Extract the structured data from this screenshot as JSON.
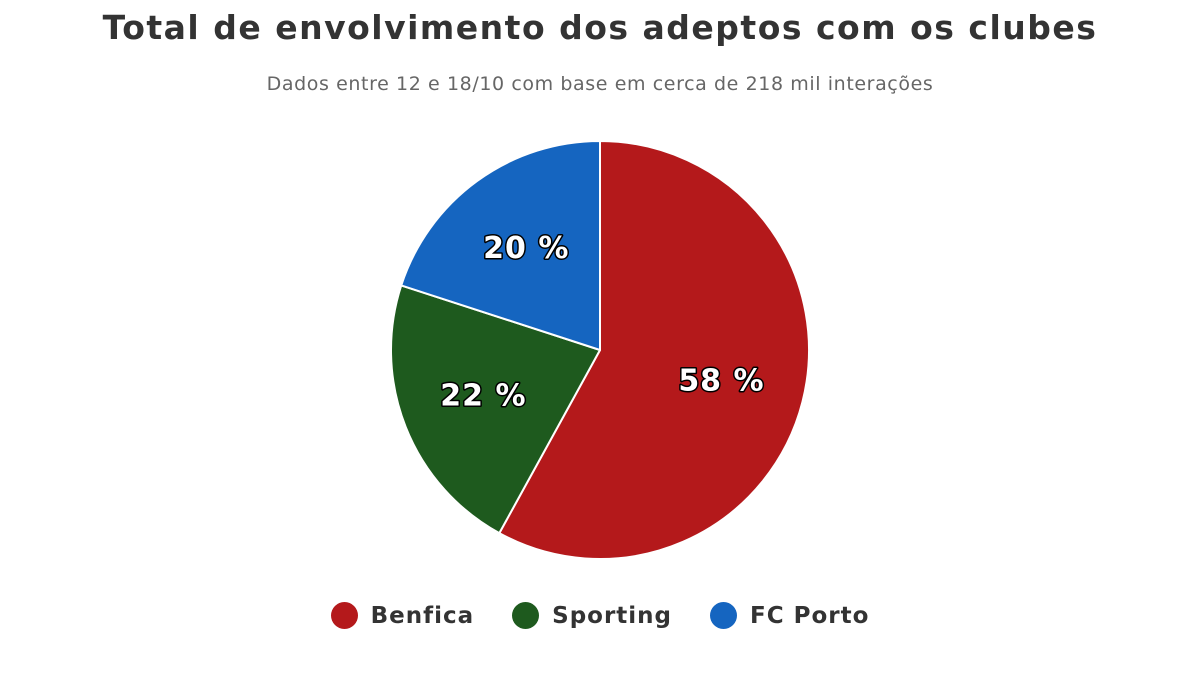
{
  "chart_data": {
    "type": "pie",
    "title": "Total de envolvimento dos adeptos com os clubes",
    "subtitle": "Dados entre 12 e 18/10 com base em cerca de 218 mil interações",
    "slices": [
      {
        "name": "Benfica",
        "value": 58,
        "label": "58 %",
        "color": "#b4191b"
      },
      {
        "name": "Sporting",
        "value": 22,
        "label": "22 %",
        "color": "#1e5a1e"
      },
      {
        "name": "FC Porto",
        "value": 20,
        "label": "20 %",
        "color": "#1565c0"
      }
    ],
    "legend": {
      "position": "bottom",
      "items": [
        "Benfica",
        "Sporting",
        "FC Porto"
      ]
    },
    "start_direction": "top",
    "direction": "clockwise"
  }
}
